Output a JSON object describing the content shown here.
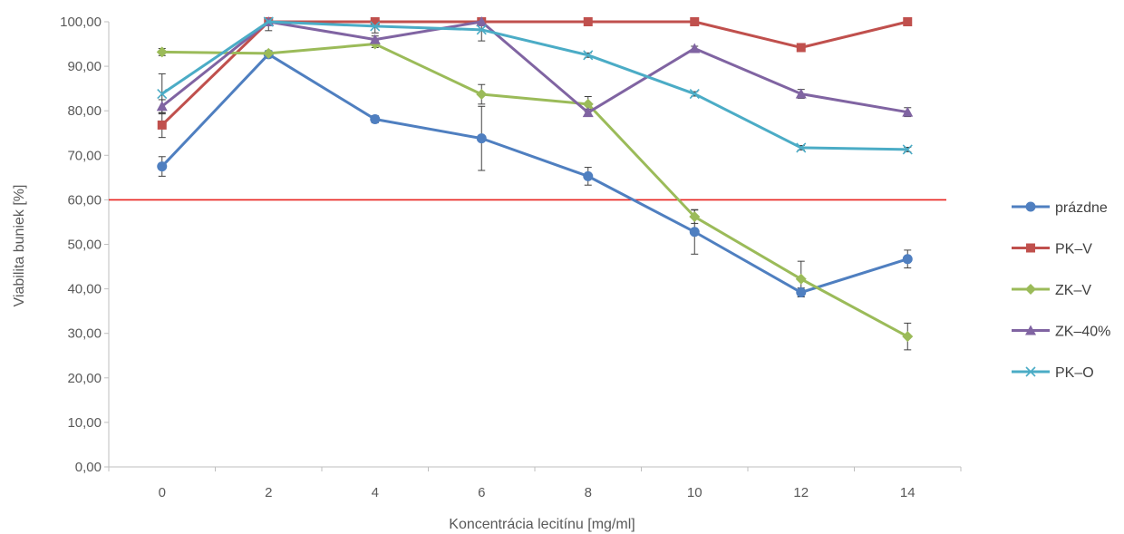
{
  "chart_data": {
    "type": "line",
    "title": "",
    "xlabel": "Koncentrácia lecitínu [mg/ml]",
    "ylabel": "Viabilita buniek [%]",
    "x": [
      0,
      2,
      4,
      6,
      8,
      10,
      12,
      14
    ],
    "x_ticks": [
      "0",
      "2",
      "4",
      "6",
      "8",
      "10",
      "12",
      "14"
    ],
    "ylim": [
      0,
      100
    ],
    "y_ticks": [
      "0,00",
      "10,00",
      "20,00",
      "30,00",
      "40,00",
      "50,00",
      "60,00",
      "70,00",
      "80,00",
      "90,00",
      "100,00"
    ],
    "y_tick_values": [
      0,
      10,
      20,
      30,
      40,
      50,
      60,
      70,
      80,
      90,
      100
    ],
    "grid": false,
    "legend_position": "right",
    "threshold_line": {
      "y": 60,
      "color": "#e8201e"
    },
    "series": [
      {
        "name": "prázdne",
        "color": "#4f7fc0",
        "marker": "circle",
        "values": [
          67.5,
          92.7,
          78.1,
          73.8,
          65.3,
          52.8,
          39.2,
          46.7
        ],
        "errors": [
          2.2,
          0.8,
          0.8,
          7.2,
          2.0,
          5.0,
          1.0,
          2.0
        ]
      },
      {
        "name": "PK–V",
        "color": "#c0504d",
        "marker": "square",
        "values": [
          76.8,
          100,
          100,
          100,
          100,
          100,
          94.2,
          100
        ],
        "errors": [
          2.8,
          0.5,
          0.5,
          0.5,
          0.5,
          0.5,
          0.5,
          0.5
        ]
      },
      {
        "name": "ZK–V",
        "color": "#9bbb59",
        "marker": "diamond",
        "values": [
          93.2,
          92.9,
          95.0,
          83.7,
          81.5,
          56.2,
          42.2,
          29.3
        ],
        "errors": [
          0.8,
          0.5,
          0.8,
          2.2,
          1.7,
          1.5,
          4.0,
          3.0
        ]
      },
      {
        "name": "ZK–40%",
        "color": "#8064a2",
        "marker": "triangle",
        "values": [
          81.0,
          100,
          96.0,
          100,
          79.6,
          94.0,
          83.8,
          79.7
        ],
        "errors": [
          1.5,
          0.5,
          0.8,
          0.5,
          0.8,
          0.5,
          1.0,
          1.0
        ]
      },
      {
        "name": "PK–O",
        "color": "#4bacc6",
        "marker": "x",
        "values": [
          83.8,
          100,
          99.0,
          98.2,
          92.5,
          83.8,
          71.7,
          71.3
        ],
        "errors": [
          4.5,
          2.0,
          1.5,
          2.5,
          0.5,
          0.5,
          0.5,
          0.5
        ]
      }
    ]
  }
}
